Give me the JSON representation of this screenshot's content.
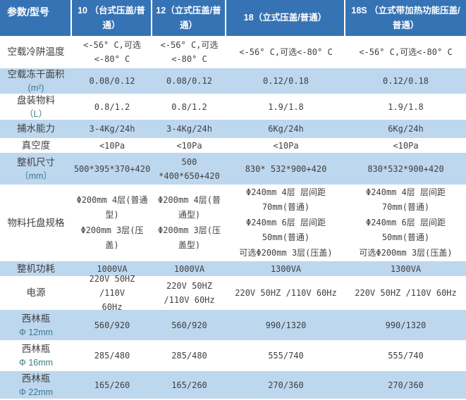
{
  "colors": {
    "header_bg": "#3673B4",
    "stripe_bg": "#BDD7EE",
    "header_text": "#FFFFFF",
    "body_text": "#404040",
    "sub_label": "#3C7B8C"
  },
  "table": {
    "header": {
      "cells": [
        "参数/型号",
        "10 （台式压盖/普通）",
        "12（立式压盖/普通）",
        "18（立式压盖/普通）",
        "18S （立式带加热功能压盖/普通）"
      ]
    },
    "rows": [
      {
        "label": "空载冷阱温度",
        "sub": "",
        "cells": [
          "<-56° C,可选\n<-80° C",
          "<-56° C,可选\n<-80° C",
          "<-56° C,可选<-80° C",
          "<-56° C,可选<-80° C"
        ]
      },
      {
        "label": "空载冻干面积",
        "sub": "(m²)",
        "cells": [
          "0.08/0.12",
          "0.08/0.12",
          "0.12/0.18",
          "0.12/0.18"
        ]
      },
      {
        "label": "盘装物料",
        "sub": "（L）",
        "cells": [
          "0.8/1.2",
          "0.8/1.2",
          "1.9/1.8",
          "1.9/1.8"
        ]
      },
      {
        "label": "捕水能力",
        "sub": "",
        "cells": [
          "3-4Kg/24h",
          "3-4Kg/24h",
          "6Kg/24h",
          "6Kg/24h"
        ]
      },
      {
        "label": "真空度",
        "sub": "",
        "cells": [
          "<10Pa",
          "<10Pa",
          "<10Pa",
          "<10Pa"
        ]
      },
      {
        "label": "整机尺寸",
        "sub": "（mm）",
        "cells": [
          "500*395*370+420",
          "500\n*400*650+420",
          "830* 532*900+420",
          "830*532*900+420"
        ]
      },
      {
        "label": "物料托盘规格",
        "sub": "",
        "cells": [
          "Φ200mm 4层(普通型)\nΦ200mm 3层(压盖)",
          "Φ200mm 4层(普通型)\nΦ200mm 3层(压盖型)",
          "Φ240mm 4层 层间距 70mm(普通)\nΦ240mm 6层 层间距 50mm(普通)\n可选Φ200mm 3层(压盖)",
          "Φ240mm 4层 层间距 70mm(普通)\nΦ240mm 6层 层间距 50mm(普通)\n可选Φ200mm 3层(压盖)"
        ]
      },
      {
        "label": "整机功耗",
        "sub": "",
        "cells": [
          "1000VA",
          "1000VA",
          "1300VA",
          "1300VA"
        ]
      },
      {
        "label": "电源",
        "sub": "",
        "cells": [
          "220V 50HZ /110V\n60Hz",
          "220V 50HZ\n/110V 60Hz",
          "220V 50HZ /110V 60Hz",
          "220V 50HZ /110V 60Hz"
        ]
      },
      {
        "label": "西林瓶",
        "sub": "Φ 12mm",
        "cells": [
          "560/920",
          "560/920",
          "990/1320",
          "990/1320"
        ]
      },
      {
        "label": "西林瓶",
        "sub": "Φ 16mm",
        "cells": [
          "285/480",
          "285/480",
          "555/740",
          "555/740"
        ]
      },
      {
        "label": "西林瓶",
        "sub": "Φ 22mm",
        "cells": [
          "165/260",
          "165/260",
          "270/360",
          "270/360"
        ]
      }
    ]
  }
}
